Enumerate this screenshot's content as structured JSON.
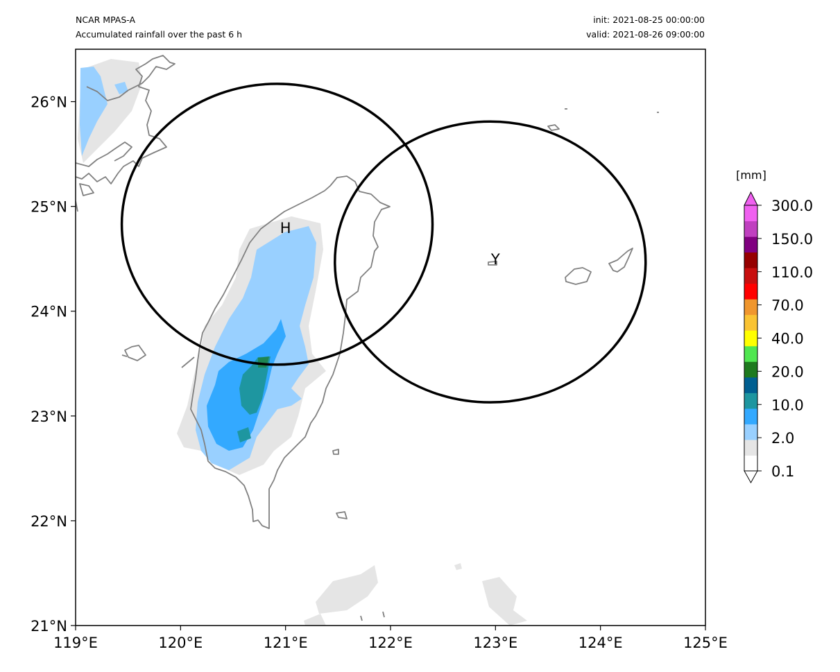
{
  "header": {
    "left_line1": "NCAR MPAS-A",
    "left_line2": "Accumulated rainfall over the past 6 h",
    "right_line1": "init: 2021-08-25 00:00:00",
    "right_line2": "valid: 2021-08-26 09:00:00"
  },
  "map": {
    "lon_range": [
      119,
      125
    ],
    "lat_range": [
      21,
      26.5
    ],
    "lon_ticks": [
      "119°E",
      "120°E",
      "121°E",
      "122°E",
      "123°E",
      "124°E",
      "125°E"
    ],
    "lat_ticks": [
      "21°N",
      "22°N",
      "23°N",
      "24°N",
      "25°N",
      "26°N"
    ],
    "markers": [
      {
        "label": "H",
        "lon": 121.0,
        "lat": 24.8,
        "radius_lon": 1.48,
        "radius_lat": 1.34,
        "center_lon": 120.92,
        "center_lat": 24.83
      },
      {
        "label": "Y",
        "lon": 123.0,
        "lat": 24.5,
        "radius_lon": 1.48,
        "radius_lat": 1.34,
        "center_lon": 122.95,
        "center_lat": 24.47
      }
    ]
  },
  "colorbar": {
    "unit_label": "[mm]",
    "tick_labels": [
      "0.1",
      "2.0",
      "10.0",
      "20.0",
      "40.0",
      "70.0",
      "110.0",
      "150.0",
      "300.0"
    ],
    "colors": [
      "#ffffff",
      "#e5e5e5",
      "#99d0ff",
      "#33a9ff",
      "#1e96a0",
      "#005f91",
      "#1e7a1e",
      "#50e650",
      "#ffff00",
      "#fac332",
      "#f0962d",
      "#ff0000",
      "#c80f0f",
      "#960000",
      "#800080",
      "#c040c0",
      "#f060f0"
    ]
  }
}
